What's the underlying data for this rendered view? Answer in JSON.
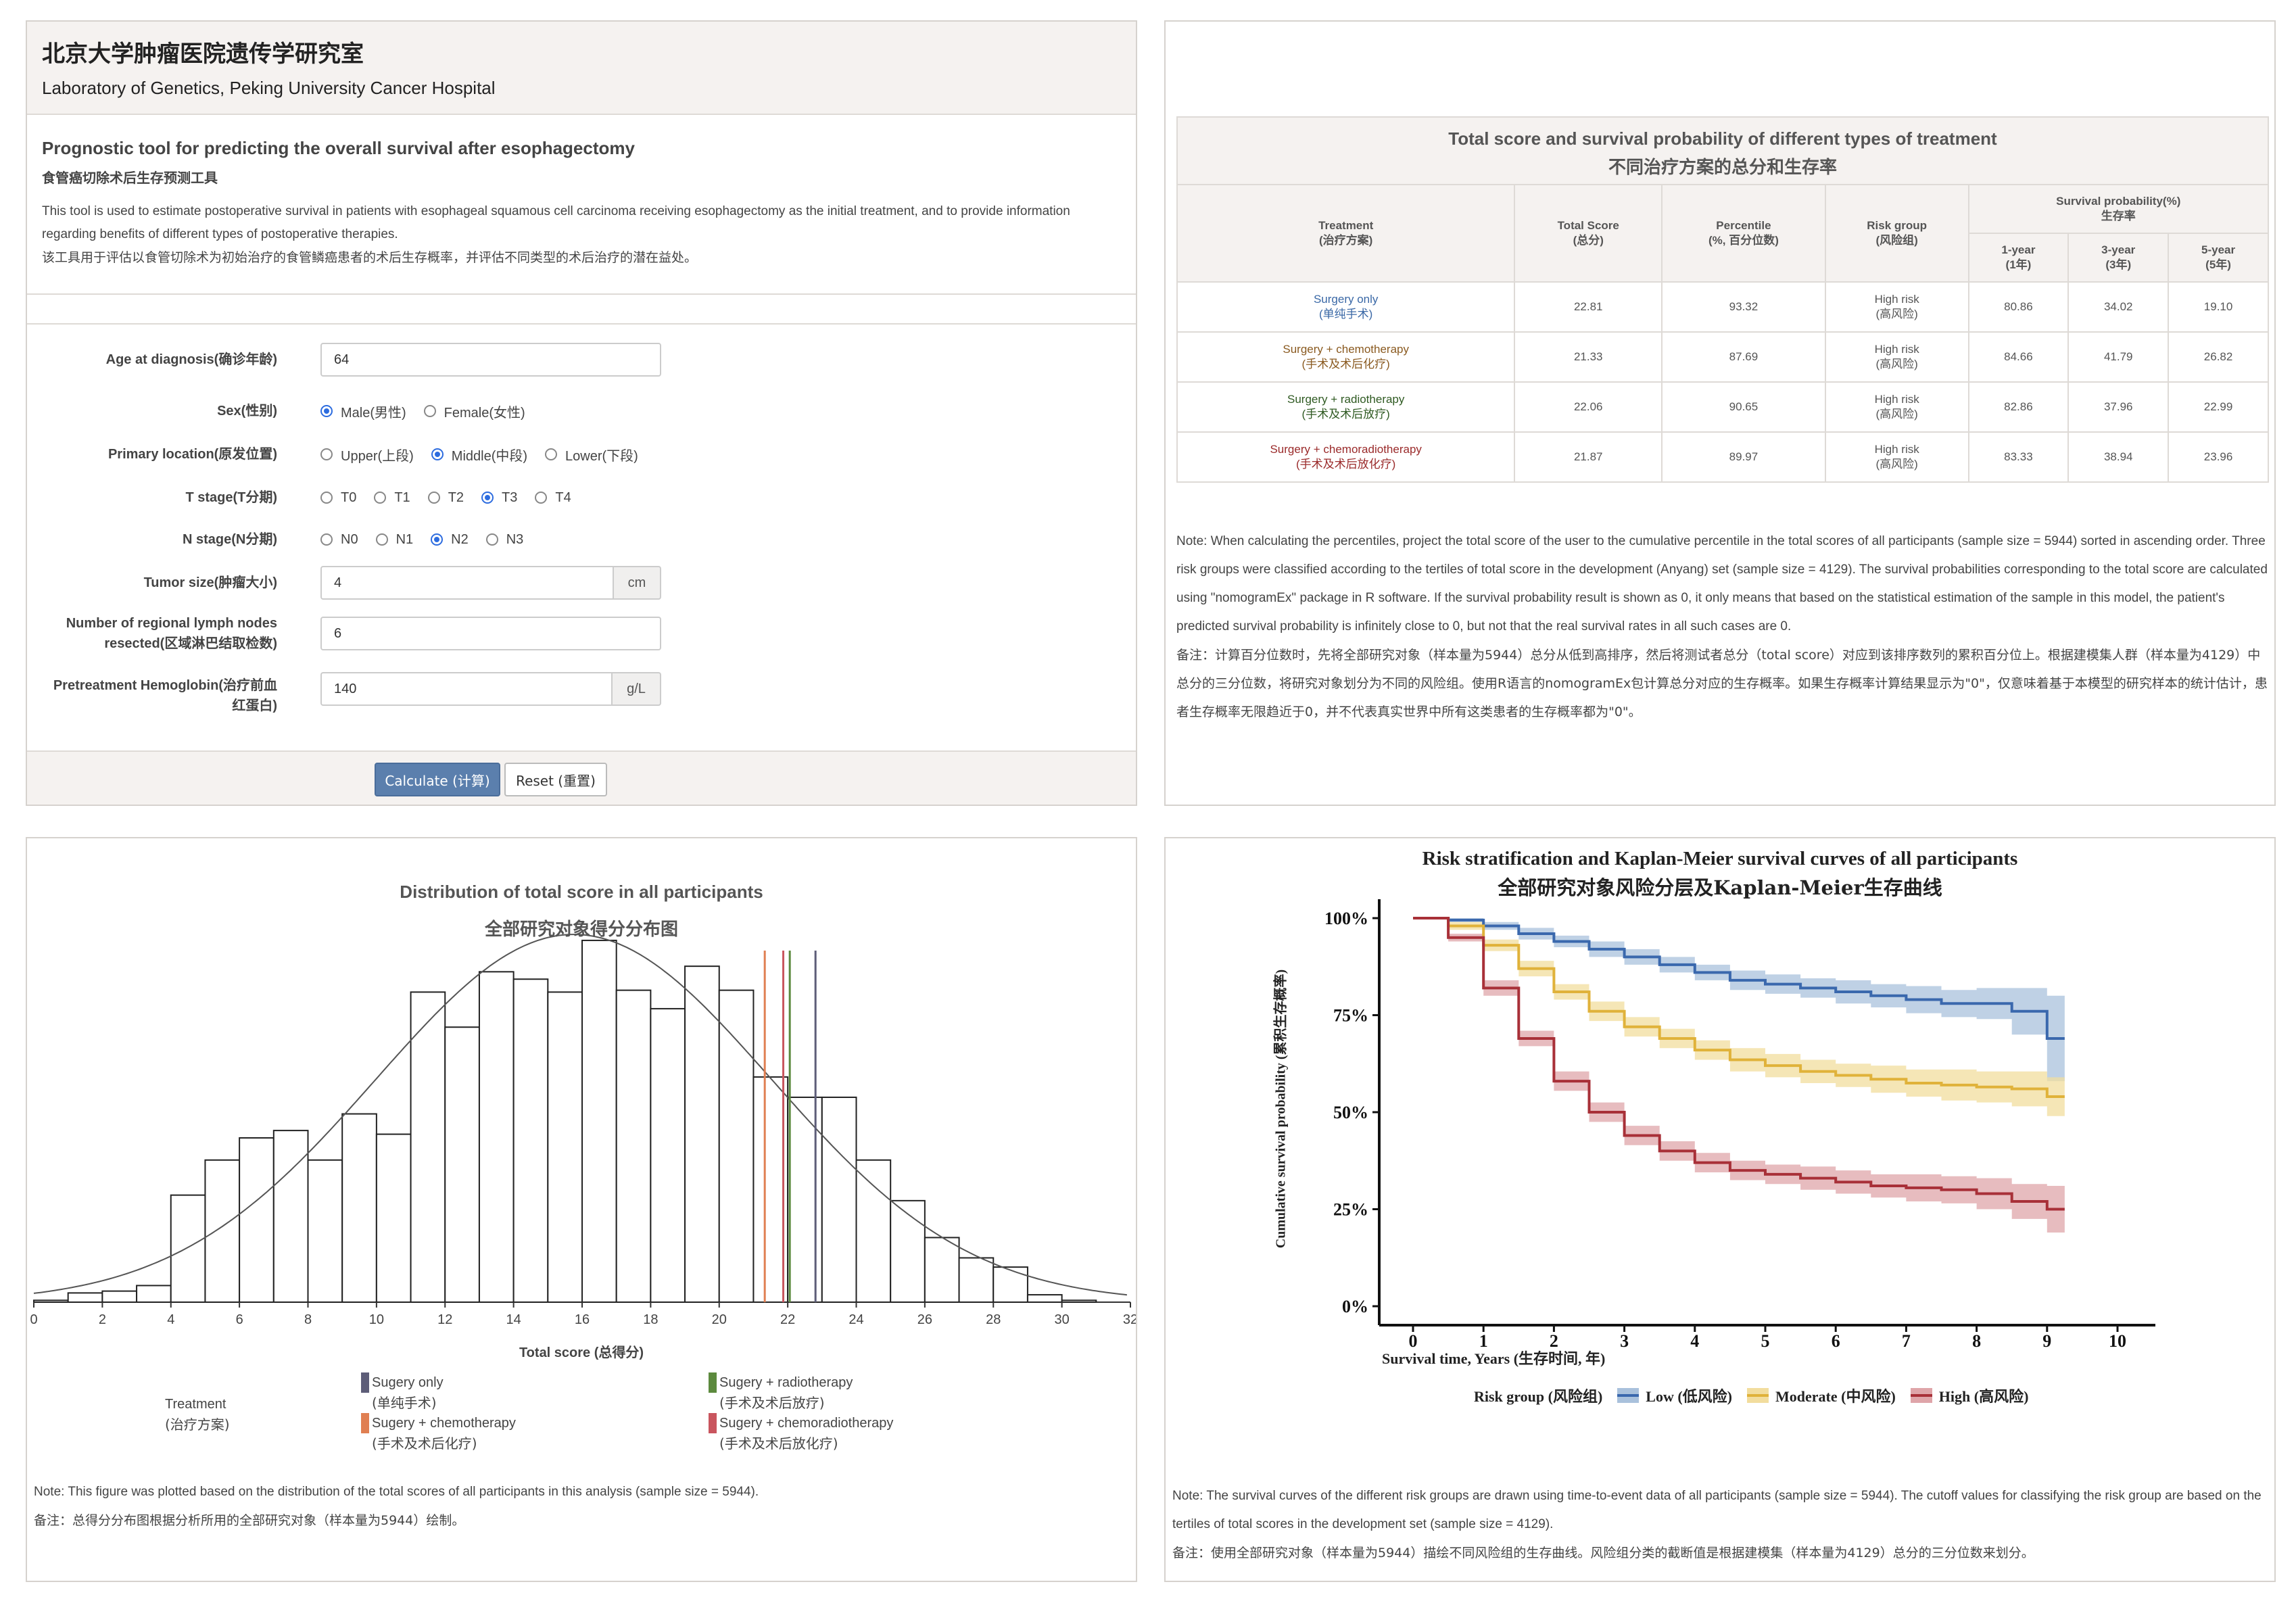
{
  "lab": {
    "name_zh": "北京大学肿瘤医院遗传学研究室",
    "name_en": "Laboratory of Genetics, Peking University Cancer Hospital"
  },
  "tool": {
    "title_en": "Prognostic tool for predicting the overall survival after esophagectomy",
    "title_zh": "食管癌切除术后生存预测工具",
    "desc_en": "This tool is used to estimate postoperative survival in patients with esophageal squamous cell carcinoma receiving esophagectomy as the initial treatment, and to provide information regarding benefits of different types of postoperative therapies.",
    "desc_zh": "该工具用于评估以食管切除术为初始治疗的食管鳞癌患者的术后生存概率，并评估不同类型的术后治疗的潜在益处。"
  },
  "form": {
    "age": {
      "label": "Age at diagnosis(确诊年龄)",
      "value": "64"
    },
    "sex": {
      "label": "Sex(性别)",
      "options": [
        "Male(男性)",
        "Female(女性)"
      ],
      "selected": 0
    },
    "location": {
      "label": "Primary location(原发位置)",
      "options": [
        "Upper(上段)",
        "Middle(中段)",
        "Lower(下段)"
      ],
      "selected": 1
    },
    "t_stage": {
      "label": "T stage(T分期)",
      "options": [
        "T0",
        "T1",
        "T2",
        "T3",
        "T4"
      ],
      "selected": 3
    },
    "n_stage": {
      "label": "N stage(N分期)",
      "options": [
        "N0",
        "N1",
        "N2",
        "N3"
      ],
      "selected": 2
    },
    "tumor_size": {
      "label": "Tumor size(肿瘤大小)",
      "value": "4",
      "unit": "cm"
    },
    "lymph": {
      "label_line1": "Number of regional lymph nodes",
      "label_line2": "resected(区域淋巴结取检数)",
      "value": "6"
    },
    "hemoglobin": {
      "label_line1": "Pretreatment Hemoglobin(治疗前血",
      "label_line2": "红蛋白)",
      "value": "140",
      "unit": "g/L"
    },
    "calculate_label": "Calculate (计算)",
    "reset_label": "Reset (重置)"
  },
  "table": {
    "title_en": "Total score and survival probability of different types of treatment",
    "title_zh": "不同治疗方案的总分和生存率",
    "headers": {
      "treatment": "Treatment",
      "treatment_zh": "(治疗方案)",
      "total": "Total Score",
      "total_zh": "(总分)",
      "percentile": "Percentile",
      "percentile_zh": "(%, 百分位数)",
      "risk": "Risk group",
      "risk_zh": "(风险组)",
      "survival": "Survival probability(%)",
      "survival_zh": "生存率",
      "y1": "1-year",
      "y1_zh": "(1年)",
      "y3": "3-year",
      "y3_zh": "(3年)",
      "y5": "5-year",
      "y5_zh": "(5年)"
    },
    "rows": [
      {
        "name": "Surgery only",
        "name_zh": "(单纯手术)",
        "total": "22.81",
        "percentile": "93.32",
        "risk": "High risk",
        "risk_zh": "(高风险)",
        "y1": "80.86",
        "y3": "34.02",
        "y5": "19.10"
      },
      {
        "name": "Surgery + chemotherapy",
        "name_zh": "(手术及术后化疗)",
        "total": "21.33",
        "percentile": "87.69",
        "risk": "High risk",
        "risk_zh": "(高风险)",
        "y1": "84.66",
        "y3": "41.79",
        "y5": "26.82"
      },
      {
        "name": "Surgery + radiotherapy",
        "name_zh": "(手术及术后放疗)",
        "total": "22.06",
        "percentile": "90.65",
        "risk": "High risk",
        "risk_zh": "(高风险)",
        "y1": "82.86",
        "y3": "37.96",
        "y5": "22.99"
      },
      {
        "name": "Surgery + chemoradiotherapy",
        "name_zh": "(手术及术后放化疗)",
        "total": "21.87",
        "percentile": "89.97",
        "risk": "High risk",
        "risk_zh": "(高风险)",
        "y1": "83.33",
        "y3": "38.94",
        "y5": "23.96"
      }
    ],
    "note_en": "Note: When calculating the percentiles, project the total score of the user to the cumulative percentile in the total scores of all participants (sample size = 5944) sorted in ascending order. Three risk groups were classified according to the tertiles of total score in the development (Anyang) set (sample size = 4129). The survival probabilities corresponding to the total score are calculated using \"nomogramEx\" package in R software. If the survival probability result is shown as 0, it only means that based on the statistical estimation of the sample in this model, the patient's predicted survival probability is infinitely close to 0, but not that the real survival rates in all such cases are 0.",
    "note_zh": "备注：计算百分位数时，先将全部研究对象（样本量为5944）总分从低到高排序，然后将测试者总分（total score）对应到该排序数列的累积百分位上。根据建模集人群（样本量为4129）中总分的三分位数，将研究对象划分为不同的风险组。使用R语言的nomogramEx包计算总分对应的生存概率。如果生存概率计算结果显示为\"0\"，仅意味着基于本模型的研究样本的统计估计，患者生存概率无限趋近于0，并不代表真实世界中所有这类患者的生存概率都为\"0\"。"
  },
  "histogram": {
    "title_en": "Distribution of total score in all participants",
    "title_zh": "全部研究对象得分分布图",
    "xlabel": "Total score (总得分)",
    "legend_title": "Treatment",
    "legend_title_zh": "(治疗方案)",
    "legend": [
      {
        "name": "Sugery only",
        "name_zh": "(单纯手术)",
        "color": "#5d5d78"
      },
      {
        "name": "Sugery + chemotherapy",
        "name_zh": "(手术及术后化疗)",
        "color": "#e07f52"
      },
      {
        "name": "Sugery + radiotherapy",
        "name_zh": "(手术及术后放疗)",
        "color": "#5c8a3e"
      },
      {
        "name": "Sugery + chemoradiotherapy",
        "name_zh": "(手术及术后放化疗)",
        "color": "#c9555e"
      }
    ],
    "note_en": "Note: This figure was plotted based on the distribution of the total scores of all participants in this analysis (sample size = 5944).",
    "note_zh": "备注：总得分分布图根据分析所用的全部研究对象（样本量为5944）绘制。"
  },
  "km": {
    "title_en": "Risk stratification and Kaplan-Meier survival curves of all participants",
    "title_zh": "全部研究对象风险分层及Kaplan-Meier生存曲线",
    "ylabel": "Cumulative survival probability (累积生存概率)",
    "xlabel": "Survival time, Years (生存时间, 年)",
    "legend_title": "Risk group (风险组)",
    "legend": [
      {
        "name": "Low (低风险)",
        "color": "#3a68ad"
      },
      {
        "name": "Moderate (中风险)",
        "color": "#e0b23a"
      },
      {
        "name": "High (高风险)",
        "color": "#a83038"
      }
    ],
    "note_en": "Note: The survival curves of the different risk groups are drawn using time-to-event data of all participants (sample size = 5944). The cutoff values for classifying the risk group are based on the tertiles of total scores in the development set (sample size = 4129).",
    "note_zh": "备注：使用全部研究对象（样本量为5944）描绘不同风险组的生存曲线。风险组分类的截断值是根据建模集（样本量为4129）总分的三分位数来划分。"
  },
  "chart_data": [
    {
      "type": "bar",
      "title": "Distribution of total score in all participants",
      "xlabel": "Total score (总得分)",
      "ylabel": "",
      "xlim": [
        0,
        32
      ],
      "ylim": [
        0,
        1000
      ],
      "xticks": [
        "0",
        "2",
        "4",
        "6",
        "8",
        "10",
        "12",
        "14",
        "16",
        "18",
        "20",
        "22",
        "24",
        "26",
        "28",
        "30",
        "32"
      ],
      "bin_width": 1,
      "bin_starts": [
        0,
        1,
        2,
        3,
        4,
        5,
        6,
        7,
        8,
        9,
        10,
        11,
        12,
        13,
        14,
        15,
        16,
        17,
        18,
        19,
        20,
        21,
        22,
        23,
        24,
        25,
        26,
        27,
        28,
        29,
        30,
        31
      ],
      "values": [
        5,
        25,
        30,
        45,
        290,
        385,
        445,
        465,
        385,
        510,
        455,
        840,
        745,
        895,
        875,
        840,
        980,
        845,
        795,
        910,
        845,
        610,
        555,
        555,
        385,
        275,
        175,
        120,
        95,
        20,
        5,
        0
      ],
      "reference_lines": [
        {
          "name": "Sugery only",
          "x": 22.81,
          "color": "#5d5d78"
        },
        {
          "name": "Sugery + chemotherapy",
          "x": 21.33,
          "color": "#e07f52"
        },
        {
          "name": "Sugery + radiotherapy",
          "x": 22.06,
          "color": "#5c8a3e"
        },
        {
          "name": "Sugery + chemoradiotherapy",
          "x": 21.87,
          "color": "#c9555e"
        }
      ],
      "density_curve": true
    },
    {
      "type": "line",
      "title": "Risk stratification and Kaplan-Meier survival curves of all participants",
      "xlabel": "Survival time, Years (生存时间, 年)",
      "ylabel": "Cumulative survival probability (累积生存概率)",
      "xlim": [
        0,
        10
      ],
      "ylim": [
        0,
        100
      ],
      "xticks": [
        "0",
        "1",
        "2",
        "3",
        "4",
        "5",
        "6",
        "7",
        "8",
        "9",
        "10"
      ],
      "yticks": [
        "0%",
        "25%",
        "50%",
        "75%",
        "100%"
      ],
      "series": [
        {
          "name": "Low (低风险)",
          "color": "#3a68ad",
          "x": [
            0,
            0.5,
            1,
            1.5,
            2,
            2.5,
            3,
            3.5,
            4,
            4.5,
            5,
            5.5,
            6,
            6.5,
            7,
            7.5,
            8,
            8.5,
            9,
            9.25
          ],
          "y": [
            100,
            99.5,
            98,
            96,
            94,
            92,
            90,
            88,
            86,
            84,
            83,
            82,
            81,
            80,
            79,
            78,
            78,
            76,
            69,
            69
          ],
          "ci_width": [
            0,
            0.5,
            1,
            1.5,
            1.5,
            2,
            2,
            2,
            2,
            2.5,
            2.5,
            2.5,
            3,
            3,
            3.5,
            3.5,
            4,
            6,
            11,
            11
          ]
        },
        {
          "name": "Moderate (中风险)",
          "color": "#e0b23a",
          "x": [
            0,
            0.5,
            1,
            1.5,
            2,
            2.5,
            3,
            3.5,
            4,
            4.5,
            5,
            5.5,
            6,
            6.5,
            7,
            7.5,
            8,
            8.5,
            9,
            9.25
          ],
          "y": [
            100,
            98,
            93,
            87,
            81,
            76,
            72,
            69,
            66,
            63.5,
            62,
            60.5,
            59.5,
            58.5,
            57.5,
            57,
            56.5,
            56,
            54,
            54
          ],
          "ci_width": [
            0,
            1,
            1.5,
            2,
            2,
            2.5,
            2.5,
            2.5,
            2.5,
            3,
            3,
            3,
            3,
            3.5,
            3.5,
            4,
            4,
            4.5,
            5,
            5
          ]
        },
        {
          "name": "High (高风险)",
          "color": "#a83038",
          "x": [
            0,
            0.5,
            1,
            1.5,
            2,
            2.5,
            3,
            3.5,
            4,
            4.5,
            5,
            5.5,
            6,
            6.5,
            7,
            7.5,
            8,
            8.5,
            9,
            9.25
          ],
          "y": [
            100,
            95,
            82,
            69,
            58,
            50,
            44,
            40,
            37,
            35,
            34,
            33,
            32,
            31,
            30.5,
            30,
            29,
            27,
            25,
            25
          ],
          "ci_width": [
            0,
            1,
            2,
            2,
            2.5,
            2.5,
            2.5,
            2.5,
            2.5,
            2.5,
            2.5,
            3,
            3,
            3,
            3.5,
            3.5,
            4,
            4.5,
            6,
            6
          ]
        }
      ],
      "legend_position": "bottom",
      "grid": false
    }
  ]
}
